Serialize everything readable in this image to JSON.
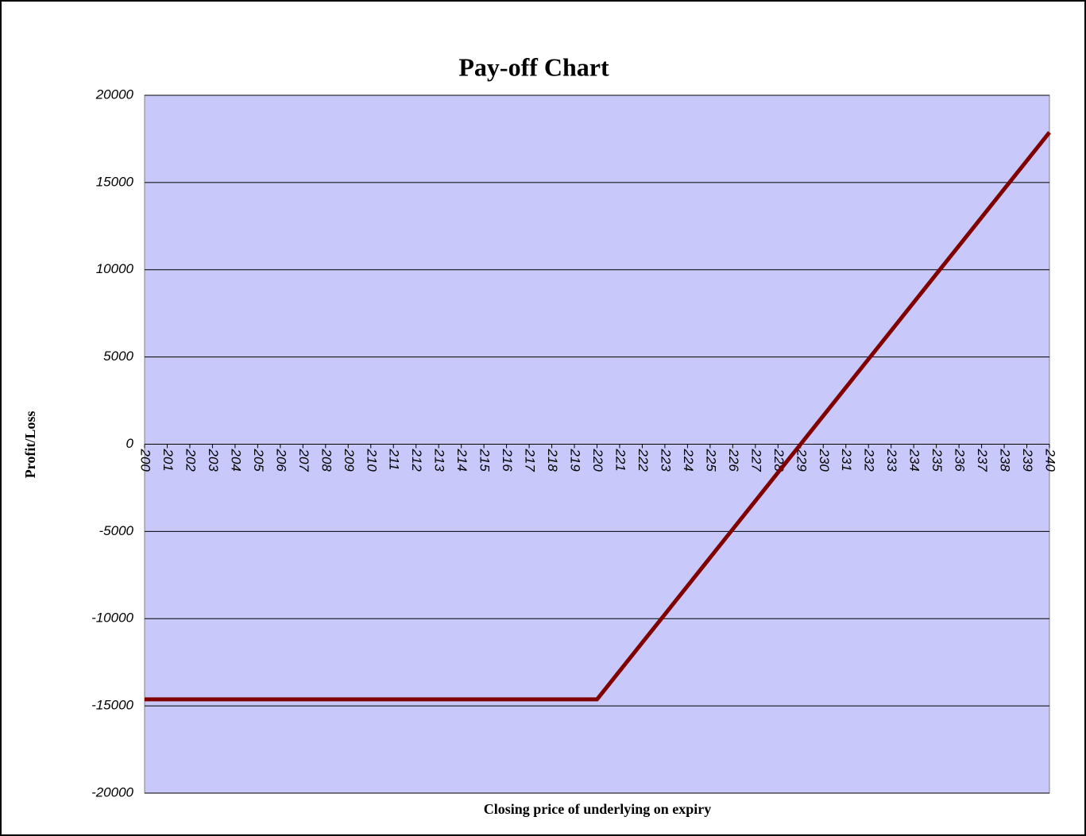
{
  "chart_data": {
    "type": "line",
    "title": "Pay-off Chart",
    "x_label": "Closing price of underlying on expiry",
    "y_label": "Profit/Loss",
    "categories": [
      "200",
      "201",
      "202",
      "203",
      "204",
      "205",
      "206",
      "207",
      "208",
      "209",
      "210",
      "211",
      "212",
      "213",
      "214",
      "215",
      "216",
      "217",
      "218",
      "219",
      "220",
      "221",
      "222",
      "223",
      "224",
      "225",
      "226",
      "227",
      "228",
      "229",
      "230",
      "231",
      "232",
      "233",
      "234",
      "235",
      "236",
      "237",
      "238",
      "239",
      "240"
    ],
    "series": [
      {
        "name": "Profit/Loss",
        "color": "#800000",
        "values": [
          -14625,
          -14625,
          -14625,
          -14625,
          -14625,
          -14625,
          -14625,
          -14625,
          -14625,
          -14625,
          -14625,
          -14625,
          -14625,
          -14625,
          -14625,
          -14625,
          -14625,
          -14625,
          -14625,
          -14625,
          -14625,
          -13000,
          -11375,
          -9750,
          -8125,
          -6500,
          -4875,
          -3250,
          -1625,
          0,
          1625,
          3250,
          4875,
          6500,
          8125,
          9750,
          11375,
          13000,
          14625,
          16250,
          17875
        ]
      }
    ],
    "ylim": [
      -20000,
      20000
    ],
    "yticks": [
      -20000,
      -15000,
      -10000,
      -5000,
      0,
      5000,
      10000,
      15000,
      20000
    ],
    "grid": true,
    "plot_color": "#c8c8fa"
  }
}
